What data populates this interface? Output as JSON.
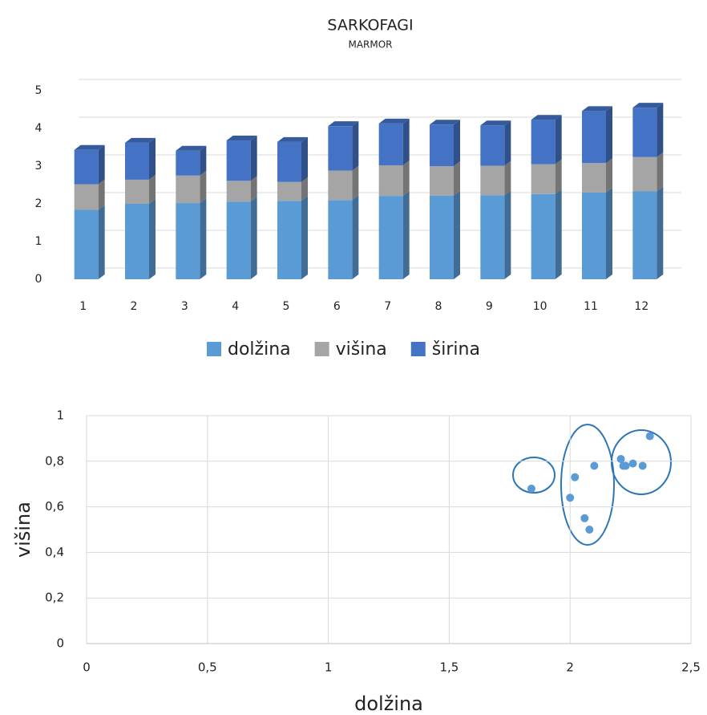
{
  "chart_data": [
    {
      "type": "bar3d",
      "title": "SARKOFAGI",
      "subtitle": "MARMOR",
      "categories": [
        "1",
        "2",
        "3",
        "4",
        "5",
        "6",
        "7",
        "8",
        "9",
        "10",
        "11",
        "12"
      ],
      "series": [
        {
          "name": "dolžina",
          "color": "#5b9bd5",
          "values": [
            1.84,
            2.0,
            2.02,
            2.06,
            2.08,
            2.1,
            2.21,
            2.22,
            2.23,
            2.26,
            2.3,
            2.33
          ]
        },
        {
          "name": "višina",
          "color": "#a5a5a5",
          "values": [
            0.68,
            0.64,
            0.73,
            0.55,
            0.5,
            0.78,
            0.81,
            0.78,
            0.78,
            0.79,
            0.78,
            0.91
          ]
        },
        {
          "name": "širina",
          "color": "#4472c4",
          "values": [
            0.91,
            0.98,
            0.66,
            1.07,
            1.06,
            1.18,
            1.11,
            1.1,
            1.07,
            1.18,
            1.38,
            1.31
          ]
        }
      ],
      "ylim": [
        0,
        5
      ],
      "yticks": [
        0,
        1,
        2,
        3,
        4,
        5
      ],
      "grid": true,
      "legend": "bottom"
    },
    {
      "type": "scatter",
      "xlabel": "dolžina",
      "ylabel": "višina",
      "color": "#5b9bd5",
      "x": [
        1.84,
        2.0,
        2.02,
        2.06,
        2.08,
        2.1,
        2.21,
        2.22,
        2.23,
        2.26,
        2.3,
        2.33
      ],
      "values": [
        0.68,
        0.64,
        0.73,
        0.55,
        0.5,
        0.78,
        0.81,
        0.78,
        0.78,
        0.79,
        0.78,
        0.91
      ],
      "xlim": [
        0,
        2.5
      ],
      "xticks": [
        0,
        {
          "value": 0.5,
          "label": "0,5"
        },
        1,
        {
          "value": 1.5,
          "label": "1,5"
        },
        2,
        {
          "value": 2.5,
          "label": "2,5"
        }
      ],
      "ylim": [
        0,
        1
      ],
      "yticks": [
        0,
        {
          "value": 0.2,
          "label": "0,2"
        },
        {
          "value": 0.4,
          "label": "0,4"
        },
        {
          "value": 0.6,
          "label": "0,6"
        },
        {
          "value": 0.8,
          "label": "0,8"
        },
        1
      ],
      "grid": true
    }
  ]
}
